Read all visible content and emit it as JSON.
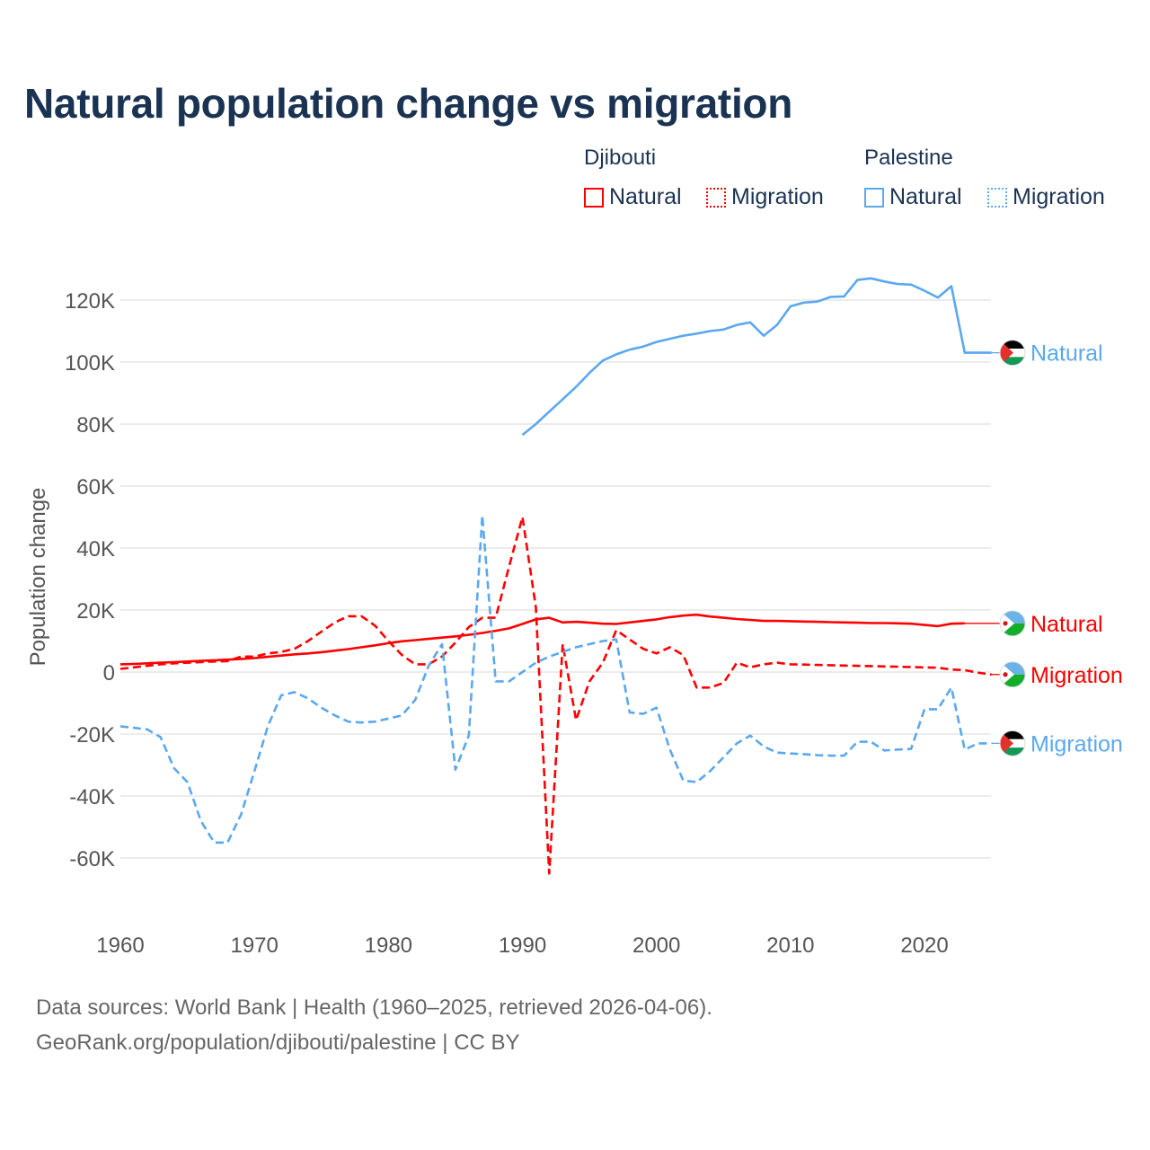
{
  "chart_data": {
    "type": "line",
    "title": "Natural population change vs migration",
    "xlabel": "",
    "ylabel": "Population change",
    "xlim": [
      1960,
      2025
    ],
    "ylim": [
      -70000,
      130000
    ],
    "x_ticks": [
      1960,
      1970,
      1980,
      1990,
      2000,
      2010,
      2020
    ],
    "y_ticks": [
      -60000,
      -40000,
      -20000,
      0,
      20000,
      40000,
      60000,
      80000,
      100000,
      120000
    ],
    "y_tick_labels": [
      "-60K",
      "-40K",
      "-20K",
      "0",
      "20K",
      "40K",
      "60K",
      "80K",
      "100K",
      "120K"
    ],
    "x_tick_labels": [
      "1960",
      "1970",
      "1980",
      "1990",
      "2000",
      "2010",
      "2020"
    ],
    "grid": true,
    "legend": {
      "placement": "top-right",
      "groups": [
        {
          "title": "Djibouti",
          "items": [
            "Natural",
            "Migration"
          ]
        },
        {
          "title": "Palestine",
          "items": [
            "Natural",
            "Migration"
          ]
        }
      ]
    },
    "series": [
      {
        "name": "Djibouti Natural",
        "country": "Djibouti",
        "kind": "Natural",
        "color": "#ff0000",
        "dash": false,
        "start": 1960,
        "end_label": "Natural",
        "values_k": [
          2.5,
          2.6,
          2.8,
          3.0,
          3.2,
          3.4,
          3.6,
          3.8,
          4.0,
          4.2,
          4.5,
          4.9,
          5.3,
          5.7,
          6.0,
          6.4,
          6.9,
          7.4,
          8.0,
          8.6,
          9.3,
          9.9,
          10.3,
          10.7,
          11.1,
          11.5,
          12.0,
          12.6,
          13.3,
          14.1,
          15.5,
          17.0,
          17.5,
          16.0,
          16.2,
          15.9,
          15.6,
          15.5,
          16.0,
          16.5,
          17.0,
          17.7,
          18.2,
          18.5,
          17.9,
          17.5,
          17.1,
          16.8,
          16.5,
          16.5,
          16.4,
          16.3,
          16.2,
          16.1,
          16.0,
          15.9,
          15.8,
          15.8,
          15.7,
          15.6,
          15.2,
          14.8,
          15.6,
          15.7
        ]
      },
      {
        "name": "Djibouti Migration",
        "country": "Djibouti",
        "kind": "Migration",
        "color": "#ff0000",
        "dash": true,
        "start": 1960,
        "end_label": "Migration",
        "values_k": [
          1.0,
          1.5,
          2.0,
          2.5,
          2.8,
          3.0,
          3.2,
          3.4,
          3.5,
          5.0,
          5.0,
          6.0,
          6.5,
          7.5,
          10.0,
          13.0,
          16.0,
          18.0,
          18.0,
          15.0,
          10.0,
          5.5,
          2.5,
          2.5,
          5.0,
          9.5,
          14.5,
          17.5,
          17.5,
          34.0,
          50.0,
          21.0,
          -65.0,
          9.0,
          -15.5,
          -3.0,
          3.0,
          13.5,
          10.5,
          7.5,
          6.0,
          8.0,
          5.5,
          -5.0,
          -5.0,
          -3.5,
          3.0,
          1.5,
          2.5,
          3.0,
          2.5,
          2.4,
          2.3,
          2.2,
          2.1,
          2.0,
          1.9,
          1.8,
          1.7,
          1.6,
          1.5,
          1.4,
          0.8,
          0.6,
          -0.2,
          -0.8
        ]
      },
      {
        "name": "Palestine Natural",
        "country": "Palestine",
        "kind": "Natural",
        "color": "#5ba8ef",
        "dash": false,
        "start": 1990,
        "end_label": "Natural",
        "values_k": [
          76.5,
          80.0,
          84.0,
          88.0,
          92.0,
          96.5,
          100.5,
          102.5,
          104.0,
          105.0,
          106.5,
          107.5,
          108.5,
          109.2,
          110.0,
          110.5,
          112.0,
          112.8,
          108.5,
          112.0,
          118.0,
          119.2,
          119.5,
          121.0,
          121.2,
          126.5,
          127.0,
          126.0,
          125.2,
          125.0,
          123.0,
          120.8,
          124.5,
          103.0,
          103.0,
          103.0
        ]
      },
      {
        "name": "Palestine Migration",
        "country": "Palestine",
        "kind": "Migration",
        "color": "#5ba8ef",
        "dash": true,
        "start": 1960,
        "end_label": "Migration",
        "values_k": [
          -17.5,
          -18.0,
          -18.5,
          -21.0,
          -31.0,
          -35.5,
          -48.0,
          -55.0,
          -55.0,
          -46.0,
          -32.0,
          -17.5,
          -7.5,
          -6.5,
          -8.5,
          -11.5,
          -14.0,
          -16.0,
          -16.3,
          -16.0,
          -15.0,
          -14.0,
          -9.0,
          2.0,
          9.0,
          -31.5,
          -20.5,
          50.5,
          -3.0,
          -3.0,
          0.0,
          3.0,
          5.0,
          6.5,
          8.0,
          9.0,
          10.0,
          10.5,
          -13.0,
          -13.5,
          -11.5,
          -25.0,
          -35.0,
          -35.5,
          -32.0,
          -27.5,
          -23.0,
          -20.5,
          -24.0,
          -26.0,
          -26.3,
          -26.5,
          -26.8,
          -27.0,
          -27.0,
          -22.5,
          -22.5,
          -25.3,
          -25.0,
          -24.8,
          -12.0,
          -12.0,
          -5.0,
          -25.0,
          -23.0,
          -23.0
        ]
      }
    ]
  },
  "legend": {
    "djibouti": "Djibouti",
    "palestine": "Palestine",
    "natural": "Natural",
    "migration": "Migration"
  },
  "colors": {
    "djibouti": "#ff0000",
    "palestine": "#5ba8ef",
    "title": "#1b3353"
  },
  "footer": {
    "line1": "Data sources: World Bank | Health (1960–2025, retrieved 2026-04-06).",
    "line2": "GeoRank.org/population/djibouti/palestine | CC BY"
  }
}
